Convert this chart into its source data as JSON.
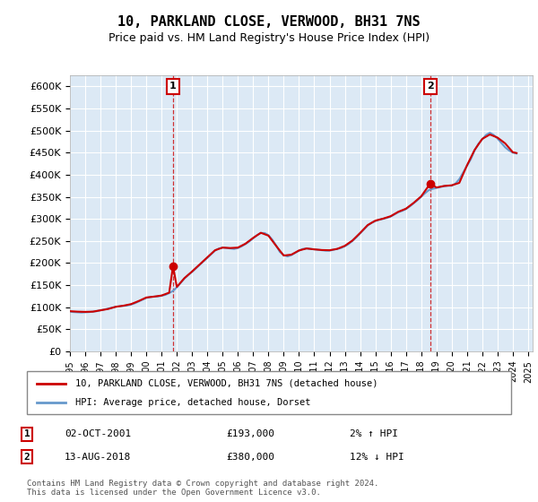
{
  "title": "10, PARKLAND CLOSE, VERWOOD, BH31 7NS",
  "subtitle": "Price paid vs. HM Land Registry's House Price Index (HPI)",
  "background_color": "#dce9f5",
  "plot_bg_color": "#dce9f5",
  "hpi_color": "#6699cc",
  "price_color": "#cc0000",
  "marker_color": "#cc0000",
  "ylim": [
    0,
    625000
  ],
  "yticks": [
    0,
    50000,
    100000,
    150000,
    200000,
    250000,
    300000,
    350000,
    400000,
    450000,
    500000,
    550000,
    600000
  ],
  "sale1": {
    "date_idx": 2001.75,
    "price": 193000,
    "label": "1"
  },
  "sale2": {
    "date_idx": 2018.6,
    "price": 380000,
    "label": "2"
  },
  "legend_entry1": "10, PARKLAND CLOSE, VERWOOD, BH31 7NS (detached house)",
  "legend_entry2": "HPI: Average price, detached house, Dorset",
  "table_row1_num": "1",
  "table_row1_date": "02-OCT-2001",
  "table_row1_price": "£193,000",
  "table_row1_hpi": "2% ↑ HPI",
  "table_row2_num": "2",
  "table_row2_date": "13-AUG-2018",
  "table_row2_price": "£380,000",
  "table_row2_hpi": "12% ↓ HPI",
  "footer": "Contains HM Land Registry data © Crown copyright and database right 2024.\nThis data is licensed under the Open Government Licence v3.0.",
  "hpi_data": {
    "years": [
      1995,
      1995.25,
      1995.5,
      1995.75,
      1996,
      1996.25,
      1996.5,
      1996.75,
      1997,
      1997.25,
      1997.5,
      1997.75,
      1998,
      1998.25,
      1998.5,
      1998.75,
      1999,
      1999.25,
      1999.5,
      1999.75,
      2000,
      2000.25,
      2000.5,
      2000.75,
      2001,
      2001.25,
      2001.5,
      2001.75,
      2002,
      2002.25,
      2002.5,
      2002.75,
      2003,
      2003.25,
      2003.5,
      2003.75,
      2004,
      2004.25,
      2004.5,
      2004.75,
      2005,
      2005.25,
      2005.5,
      2005.75,
      2006,
      2006.25,
      2006.5,
      2006.75,
      2007,
      2007.25,
      2007.5,
      2007.75,
      2008,
      2008.25,
      2008.5,
      2008.75,
      2009,
      2009.25,
      2009.5,
      2009.75,
      2010,
      2010.25,
      2010.5,
      2010.75,
      2011,
      2011.25,
      2011.5,
      2011.75,
      2012,
      2012.25,
      2012.5,
      2012.75,
      2013,
      2013.25,
      2013.5,
      2013.75,
      2014,
      2014.25,
      2014.5,
      2014.75,
      2015,
      2015.25,
      2015.5,
      2015.75,
      2016,
      2016.25,
      2016.5,
      2016.75,
      2017,
      2017.25,
      2017.5,
      2017.75,
      2018,
      2018.25,
      2018.5,
      2018.75,
      2019,
      2019.25,
      2019.5,
      2019.75,
      2020,
      2020.25,
      2020.5,
      2020.75,
      2021,
      2021.25,
      2021.5,
      2021.75,
      2022,
      2022.25,
      2022.5,
      2022.75,
      2023,
      2023.25,
      2023.5,
      2023.75,
      2024,
      2024.25
    ],
    "values": [
      90000,
      89000,
      88500,
      88000,
      88500,
      89000,
      90000,
      91000,
      93000,
      95000,
      97000,
      99000,
      101000,
      102000,
      103000,
      104000,
      106000,
      109000,
      113000,
      117000,
      121000,
      123000,
      124000,
      124500,
      126000,
      128000,
      132000,
      137000,
      145000,
      155000,
      165000,
      173000,
      180000,
      188000,
      196000,
      204000,
      212000,
      220000,
      228000,
      233000,
      235000,
      234000,
      233000,
      232000,
      234000,
      238000,
      243000,
      249000,
      256000,
      263000,
      268000,
      268000,
      263000,
      253000,
      240000,
      225000,
      218000,
      215000,
      218000,
      223000,
      228000,
      232000,
      233000,
      232000,
      231000,
      230000,
      229000,
      228000,
      228000,
      230000,
      232000,
      234000,
      238000,
      243000,
      250000,
      258000,
      267000,
      276000,
      285000,
      291000,
      295000,
      298000,
      300000,
      302000,
      305000,
      310000,
      315000,
      318000,
      322000,
      328000,
      335000,
      342000,
      350000,
      358000,
      365000,
      368000,
      370000,
      372000,
      374000,
      375000,
      375000,
      380000,
      390000,
      405000,
      420000,
      435000,
      455000,
      470000,
      480000,
      490000,
      495000,
      490000,
      482000,
      472000,
      462000,
      455000,
      450000,
      448000
    ]
  },
  "price_data": {
    "years": [
      1995,
      1995.5,
      1996,
      1996.5,
      1997,
      1997.5,
      1998,
      1998.5,
      1999,
      1999.5,
      2000,
      2000.5,
      2001,
      2001.5,
      2001.75,
      2002,
      2002.5,
      2003,
      2003.5,
      2004,
      2004.5,
      2005,
      2005.5,
      2006,
      2006.5,
      2007,
      2007.5,
      2008,
      2008.5,
      2009,
      2009.5,
      2010,
      2010.5,
      2011,
      2011.5,
      2012,
      2012.5,
      2013,
      2013.5,
      2014,
      2014.5,
      2015,
      2015.5,
      2016,
      2016.5,
      2017,
      2017.5,
      2018,
      2018.6,
      2019,
      2019.5,
      2020,
      2020.5,
      2021,
      2021.5,
      2022,
      2022.5,
      2023,
      2023.5,
      2024,
      2024.25
    ],
    "values": [
      91000,
      90000,
      89500,
      90000,
      93000,
      96000,
      101000,
      103500,
      107000,
      114000,
      122000,
      124000,
      126500,
      133000,
      193000,
      146000,
      166000,
      181000,
      197000,
      213000,
      229000,
      235000,
      234000,
      235000,
      244000,
      257000,
      268500,
      262000,
      239000,
      217000,
      219000,
      228500,
      233000,
      231000,
      229500,
      229000,
      232000,
      239000,
      251000,
      268000,
      286000,
      296000,
      300500,
      306000,
      316000,
      323000,
      336000,
      351000,
      380000,
      371000,
      374500,
      376000,
      381500,
      421000,
      456000,
      481000,
      491000,
      484000,
      471000,
      451000,
      449000
    ]
  }
}
